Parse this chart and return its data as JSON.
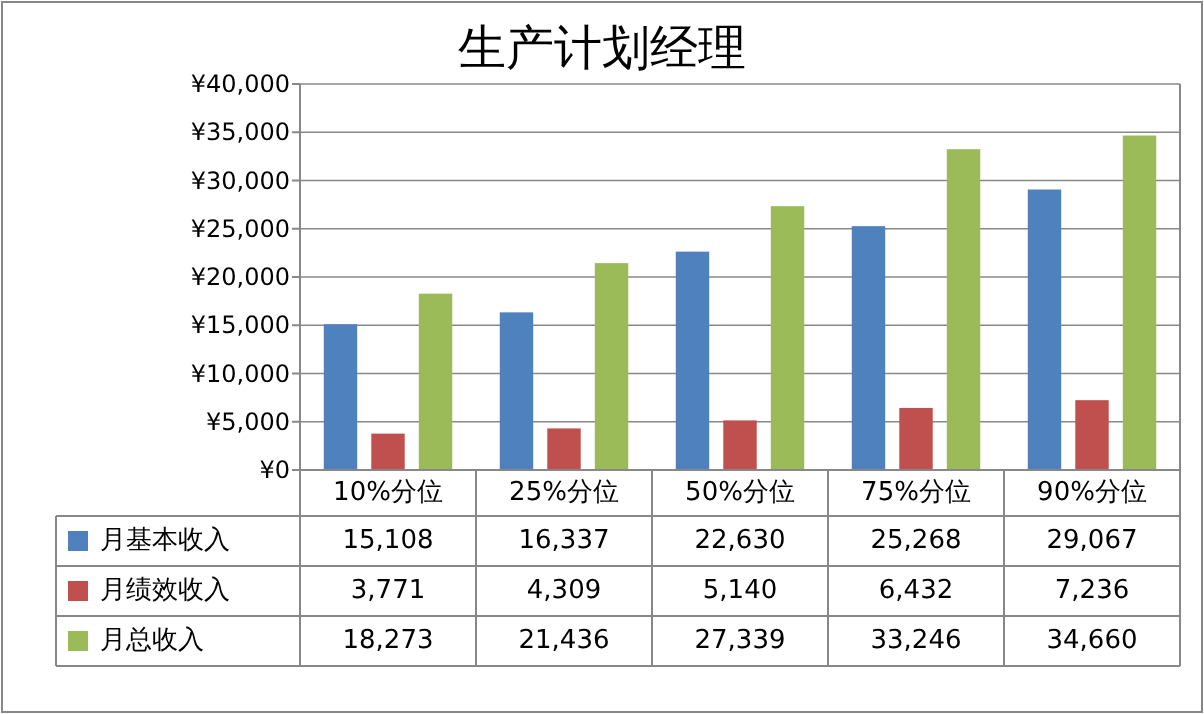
{
  "chart_data": {
    "type": "bar",
    "title": "生产计划经理",
    "categories": [
      "10%分位",
      "25%分位",
      "50%分位",
      "75%分位",
      "90%分位"
    ],
    "series": [
      {
        "name": "月基本收入",
        "color": "#4f81bd",
        "values": [
          15108,
          16337,
          22630,
          25268,
          29067
        ],
        "value_labels": [
          "15,108",
          "16,337",
          "22,630",
          "25,268",
          "29,067"
        ]
      },
      {
        "name": "月绩效收入",
        "color": "#c0504d",
        "values": [
          3771,
          4309,
          5140,
          6432,
          7236
        ],
        "value_labels": [
          "3,771",
          "4,309",
          "5,140",
          "6,432",
          "7,236"
        ]
      },
      {
        "name": "月总收入",
        "color": "#9bbb59",
        "values": [
          18273,
          21436,
          27339,
          33246,
          34660
        ],
        "value_labels": [
          "18,273",
          "21,436",
          "27,339",
          "33,246",
          "34,660"
        ]
      }
    ],
    "ylim": [
      0,
      40000
    ],
    "yticks": [
      {
        "value": 0,
        "label": "¥0"
      },
      {
        "value": 5000,
        "label": "¥5,000"
      },
      {
        "value": 10000,
        "label": "¥10,000"
      },
      {
        "value": 15000,
        "label": "¥15,000"
      },
      {
        "value": 20000,
        "label": "¥20,000"
      },
      {
        "value": 25000,
        "label": "¥25,000"
      },
      {
        "value": 30000,
        "label": "¥30,000"
      },
      {
        "value": 35000,
        "label": "¥35,000"
      },
      {
        "value": 40000,
        "label": "¥40,000"
      }
    ],
    "grid": "y",
    "legend": "bottom"
  }
}
